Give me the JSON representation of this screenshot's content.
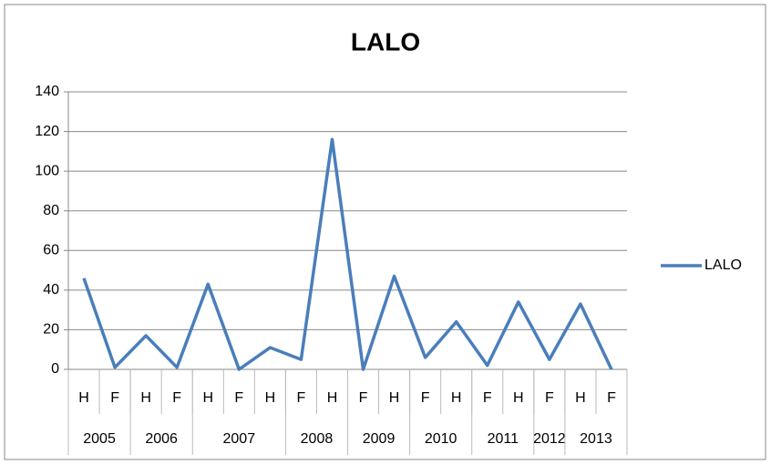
{
  "chart_data": {
    "type": "line",
    "title": "LALO",
    "categories": [
      "H",
      "F",
      "H",
      "F",
      "H",
      "F",
      "H",
      "F",
      "H",
      "F",
      "H",
      "F",
      "H",
      "F",
      "H",
      "F",
      "H",
      "F"
    ],
    "category_groups": [
      {
        "label": "2005",
        "count": 2
      },
      {
        "label": "2006",
        "count": 2
      },
      {
        "label": "2007",
        "count": 3
      },
      {
        "label": "2008",
        "count": 2
      },
      {
        "label": "2009",
        "count": 2
      },
      {
        "label": "2010",
        "count": 2
      },
      {
        "label": "2011",
        "count": 2
      },
      {
        "label": "2012",
        "count": 1
      },
      {
        "label": "2013",
        "count": 2
      }
    ],
    "series": [
      {
        "name": "LALO",
        "color": "#4a7ebb",
        "values": [
          46,
          1,
          17,
          1,
          43,
          0,
          11,
          5,
          116,
          0,
          47,
          6,
          24,
          2,
          34,
          5,
          33,
          0
        ]
      }
    ],
    "ylim": [
      0,
      140
    ],
    "yticks": [
      0,
      20,
      40,
      60,
      80,
      100,
      120,
      140
    ],
    "grid": true,
    "legend": "right"
  }
}
